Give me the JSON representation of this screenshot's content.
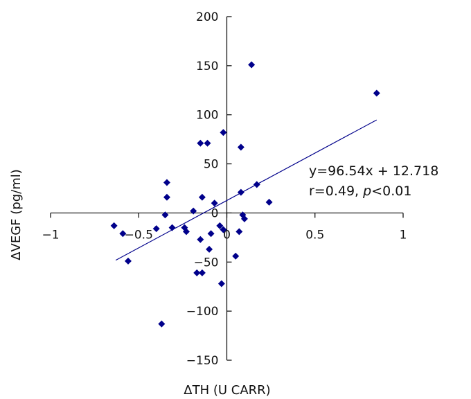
{
  "chart_data": {
    "type": "scatter",
    "title": "",
    "xlabel": "ΔTH (U CARR)",
    "ylabel": "ΔVEGF (pg/ml)",
    "xlim": [
      -1,
      1
    ],
    "ylim": [
      -150,
      200
    ],
    "x_ticks": [
      -1,
      -0.5,
      0,
      0.5,
      1
    ],
    "x_tick_labels": [
      "−1",
      "−0.5",
      "0",
      "0.5",
      "1"
    ],
    "y_ticks": [
      -150,
      -100,
      -50,
      0,
      50,
      100,
      150,
      200
    ],
    "y_tick_labels": [
      "−150",
      "−100",
      "−50",
      "0",
      "50",
      "100",
      "150",
      "200"
    ],
    "grid": false,
    "marker": "diamond",
    "color": "#00008B",
    "trendline": {
      "slope": 96.54,
      "intercept": 12.718,
      "x_range": [
        -0.63,
        0.85
      ]
    },
    "annotations": {
      "equation": "y=96.54x + 12.718",
      "r_prefix": "r=0.49, ",
      "r_italic": "p",
      "r_suffix": "<0.01"
    },
    "points": [
      {
        "x": -0.64,
        "y": -13
      },
      {
        "x": -0.59,
        "y": -21
      },
      {
        "x": -0.56,
        "y": -49
      },
      {
        "x": -0.4,
        "y": -16
      },
      {
        "x": -0.37,
        "y": -113
      },
      {
        "x": -0.35,
        "y": -2
      },
      {
        "x": -0.34,
        "y": 16
      },
      {
        "x": -0.34,
        "y": 31
      },
      {
        "x": -0.31,
        "y": -15
      },
      {
        "x": -0.24,
        "y": -15
      },
      {
        "x": -0.23,
        "y": -19
      },
      {
        "x": -0.19,
        "y": 2
      },
      {
        "x": -0.17,
        "y": -61
      },
      {
        "x": -0.15,
        "y": -27
      },
      {
        "x": -0.15,
        "y": 71
      },
      {
        "x": -0.14,
        "y": -61
      },
      {
        "x": -0.14,
        "y": 16
      },
      {
        "x": -0.11,
        "y": 71
      },
      {
        "x": -0.1,
        "y": -37
      },
      {
        "x": -0.09,
        "y": -21
      },
      {
        "x": -0.07,
        "y": 10
      },
      {
        "x": -0.04,
        "y": -13
      },
      {
        "x": -0.03,
        "y": -72
      },
      {
        "x": -0.02,
        "y": -17
      },
      {
        "x": -0.02,
        "y": 82
      },
      {
        "x": 0.05,
        "y": -44
      },
      {
        "x": 0.07,
        "y": -19
      },
      {
        "x": 0.08,
        "y": 21
      },
      {
        "x": 0.08,
        "y": 67
      },
      {
        "x": 0.09,
        "y": -2
      },
      {
        "x": 0.1,
        "y": -6
      },
      {
        "x": 0.14,
        "y": 151
      },
      {
        "x": 0.17,
        "y": 29
      },
      {
        "x": 0.24,
        "y": 11
      },
      {
        "x": 0.85,
        "y": 122
      }
    ]
  }
}
